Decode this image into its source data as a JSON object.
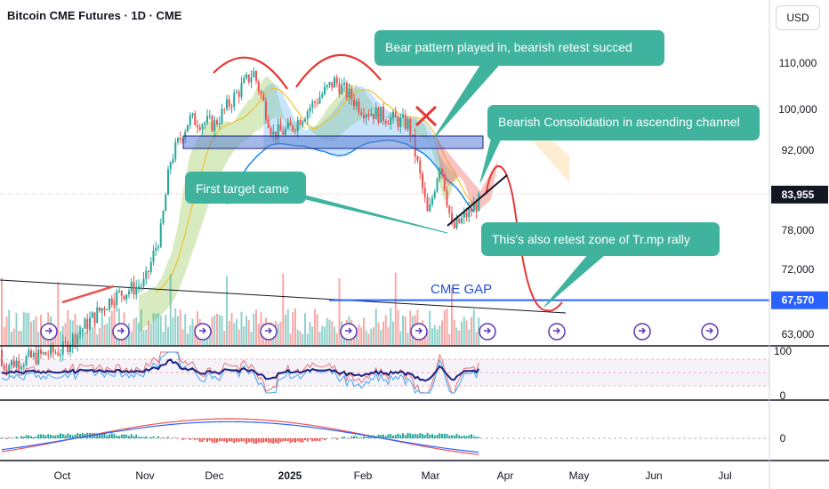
{
  "header": {
    "title": "Bitcoin CME Futures · 1D · CME",
    "currency": "USD"
  },
  "colors": {
    "up": "#26a69a",
    "down": "#ef5350",
    "callout": "#3fb39d",
    "gap_line": "#2962ff",
    "price_badge": "#131722",
    "gap_badge": "#2962ff",
    "channel_box": "#5b7fd6"
  },
  "annotations": {
    "bear_pattern": "Bear pattern played in, bearish retest succed",
    "consolidation": "Bearish Consolidation in ascending channel",
    "first_target": "First target came",
    "retest_zone": "This's also retest zone of Tr.mp rally",
    "cme_gap": "CME GAP"
  },
  "chart_data": {
    "type": "candlestick",
    "title": "Bitcoin CME Futures · 1D · CME",
    "price_axis": {
      "ticks": [
        63000,
        72000,
        78000,
        92000,
        100000,
        110000
      ],
      "labels": [
        "63,000",
        "72,000",
        "78,000",
        "92,000",
        "100,000",
        "110,000"
      ],
      "scale": "log"
    },
    "last_price": {
      "value": 83955,
      "label": "83,955"
    },
    "cme_gap": {
      "value": 67570,
      "label": "67,570"
    },
    "time_axis": [
      "Oct",
      "Nov",
      "Dec",
      "2025",
      "Feb",
      "Mar",
      "Apr",
      "May",
      "Jun",
      "Jul"
    ],
    "ohlc_points": [
      {
        "date": "Oct",
        "price": 61000
      },
      {
        "date": "Oct 20",
        "price": 68000
      },
      {
        "date": "Nov",
        "price": 70000
      },
      {
        "date": "Nov 8",
        "price": 78000
      },
      {
        "date": "Nov 12",
        "price": 90000
      },
      {
        "date": "Nov 20",
        "price": 98000
      },
      {
        "date": "Dec",
        "price": 97000
      },
      {
        "date": "Dec 17",
        "price": 108000
      },
      {
        "date": "Dec 25",
        "price": 95000
      },
      {
        "date": "2025",
        "price": 96000
      },
      {
        "date": "Jan 20",
        "price": 106000
      },
      {
        "date": "Feb",
        "price": 100000
      },
      {
        "date": "Feb 20",
        "price": 97000
      },
      {
        "date": "Feb 28",
        "price": 80000
      },
      {
        "date": "Mar 5",
        "price": 90000
      },
      {
        "date": "Mar 10",
        "price": 78000
      },
      {
        "date": "Mar 24",
        "price": 84000
      }
    ],
    "projection": [
      {
        "date": "Mar 24",
        "price": 84000
      },
      {
        "date": "Apr",
        "price": 88000
      },
      {
        "date": "Apr 10",
        "price": 76000
      },
      {
        "date": "Apr 20",
        "price": 67500
      },
      {
        "date": "May",
        "price": 69000
      }
    ],
    "rsi_pane": {
      "ticks": [
        0,
        100
      ],
      "labels": [
        "0",
        "100"
      ]
    },
    "macd_pane": {
      "ticks": [
        0
      ],
      "labels": [
        "0"
      ]
    }
  }
}
